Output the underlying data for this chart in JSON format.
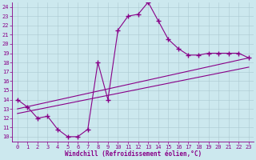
{
  "xlabel": "Windchill (Refroidissement éolien,°C)",
  "background_color": "#cce8ee",
  "plot_color": "#880088",
  "xlim": [
    -0.5,
    23.5
  ],
  "ylim": [
    9.5,
    24.5
  ],
  "xticks": [
    0,
    1,
    2,
    3,
    4,
    5,
    6,
    7,
    8,
    9,
    10,
    11,
    12,
    13,
    14,
    15,
    16,
    17,
    18,
    19,
    20,
    21,
    22,
    23
  ],
  "yticks": [
    10,
    11,
    12,
    13,
    14,
    15,
    16,
    17,
    18,
    19,
    20,
    21,
    22,
    23,
    24
  ],
  "series1_x": [
    0,
    1,
    2,
    3,
    4,
    5,
    6,
    7,
    8,
    9,
    10,
    11,
    12,
    13,
    14,
    15,
    16,
    17,
    18,
    19,
    20,
    21,
    22,
    23
  ],
  "series1_y": [
    14.0,
    13.2,
    12.0,
    12.2,
    10.8,
    10.0,
    10.0,
    10.8,
    18.0,
    14.0,
    21.5,
    23.0,
    23.2,
    24.5,
    22.5,
    20.5,
    19.5,
    18.8,
    18.8,
    19.0,
    19.0,
    19.0,
    19.0,
    18.5
  ],
  "series2_x": [
    0,
    23
  ],
  "series2_y": [
    13.0,
    18.5
  ],
  "series3_x": [
    0,
    23
  ],
  "series3_y": [
    12.5,
    17.5
  ]
}
